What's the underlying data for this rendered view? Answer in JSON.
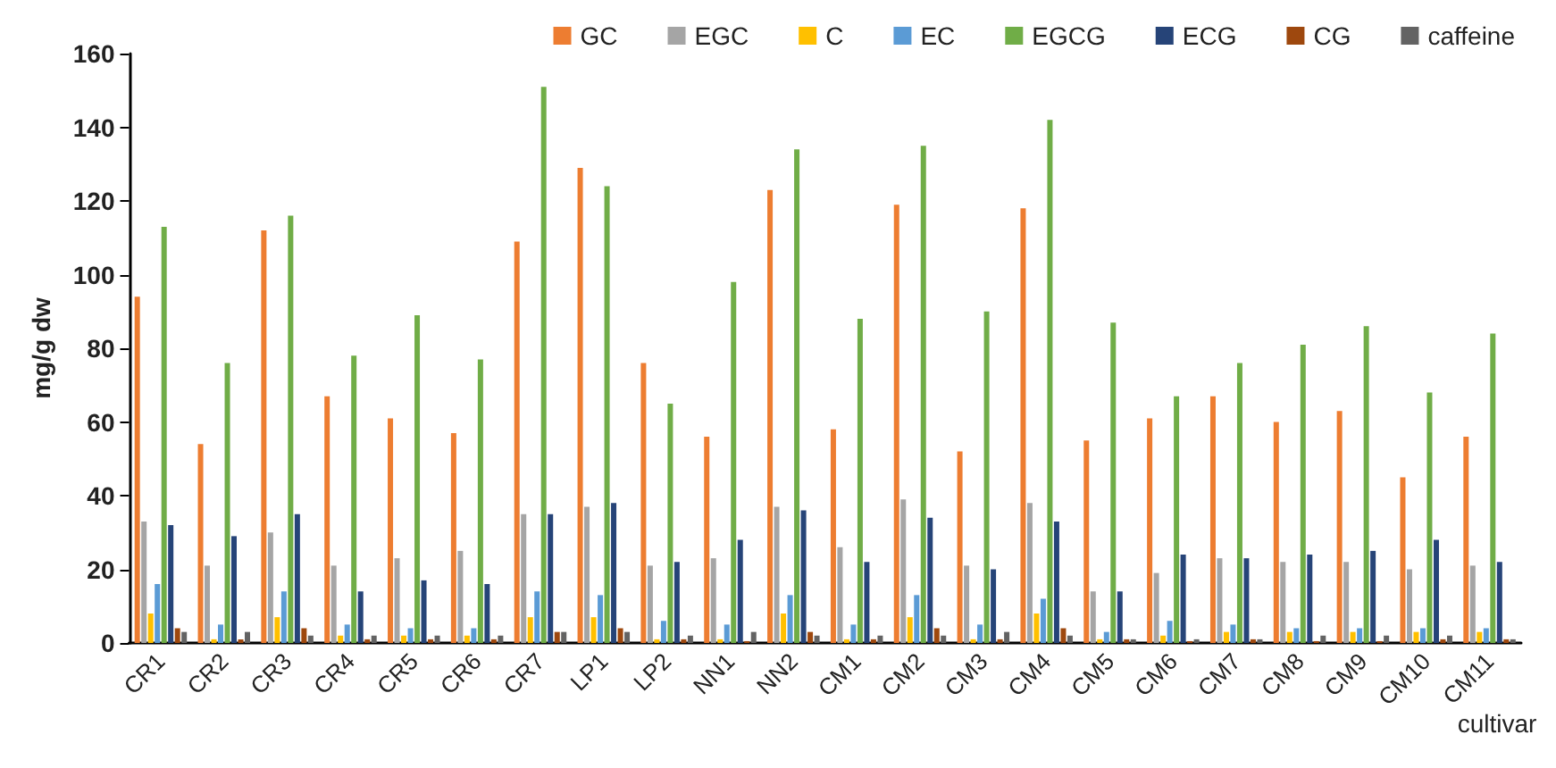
{
  "chart_data": {
    "type": "bar",
    "xlabel": "cultivar",
    "ylabel": "mg/g dw",
    "categories": [
      "CR1",
      "CR2",
      "CR3",
      "CR4",
      "CR5",
      "CR6",
      "CR7",
      "LP1",
      "LP2",
      "NN1",
      "NN2",
      "CM1",
      "CM2",
      "CM3",
      "CM4",
      "CM5",
      "CM6",
      "CM7",
      "CM8",
      "CM9",
      "CM10",
      "CM11"
    ],
    "series": [
      {
        "name": "GC",
        "color": "#ed7d31",
        "values": [
          94,
          54,
          112,
          67,
          61,
          57,
          109,
          129,
          76,
          56,
          123,
          58,
          119,
          52,
          118,
          55,
          61,
          67,
          60,
          63,
          45,
          56
        ]
      },
      {
        "name": "EGC",
        "color": "#a5a5a5",
        "values": [
          33,
          21,
          30,
          21,
          23,
          25,
          35,
          37,
          21,
          23,
          37,
          26,
          39,
          21,
          38,
          14,
          19,
          23,
          22,
          22,
          20,
          21
        ]
      },
      {
        "name": "C",
        "color": "#ffc000",
        "values": [
          8,
          1,
          7,
          2,
          2,
          2,
          7,
          7,
          1,
          1,
          8,
          1,
          7,
          1,
          8,
          1,
          2,
          3,
          3,
          3,
          3,
          3
        ]
      },
      {
        "name": "EC",
        "color": "#5b9bd5",
        "values": [
          16,
          5,
          14,
          5,
          4,
          4,
          14,
          13,
          6,
          5,
          13,
          5,
          13,
          5,
          12,
          3,
          6,
          5,
          4,
          4,
          4,
          4
        ]
      },
      {
        "name": "EGCG",
        "color": "#70ad47",
        "values": [
          113,
          76,
          116,
          78,
          89,
          77,
          151,
          124,
          65,
          98,
          134,
          88,
          135,
          90,
          142,
          87,
          67,
          76,
          81,
          86,
          68,
          84
        ]
      },
      {
        "name": "ECG",
        "color": "#264478",
        "values": [
          32,
          29,
          35,
          14,
          17,
          16,
          35,
          38,
          22,
          28,
          36,
          22,
          34,
          20,
          33,
          14,
          24,
          23,
          24,
          25,
          28,
          22
        ]
      },
      {
        "name": "CG",
        "color": "#9e480e",
        "values": [
          4,
          1,
          4,
          1,
          1,
          1,
          3,
          4,
          1,
          0.5,
          3,
          1,
          4,
          1,
          4,
          1,
          0.5,
          1,
          0.5,
          0.5,
          1,
          1
        ]
      },
      {
        "name": "caffeine",
        "color": "#636363",
        "values": [
          3,
          3,
          2,
          2,
          2,
          2,
          3,
          3,
          2,
          3,
          2,
          2,
          2,
          3,
          2,
          1,
          1,
          1,
          2,
          2,
          2,
          1
        ]
      }
    ],
    "ylim": [
      0,
      160
    ],
    "yticks": [
      0,
      20,
      40,
      60,
      80,
      100,
      120,
      140,
      160
    ],
    "grid": false,
    "legend": "top right"
  }
}
